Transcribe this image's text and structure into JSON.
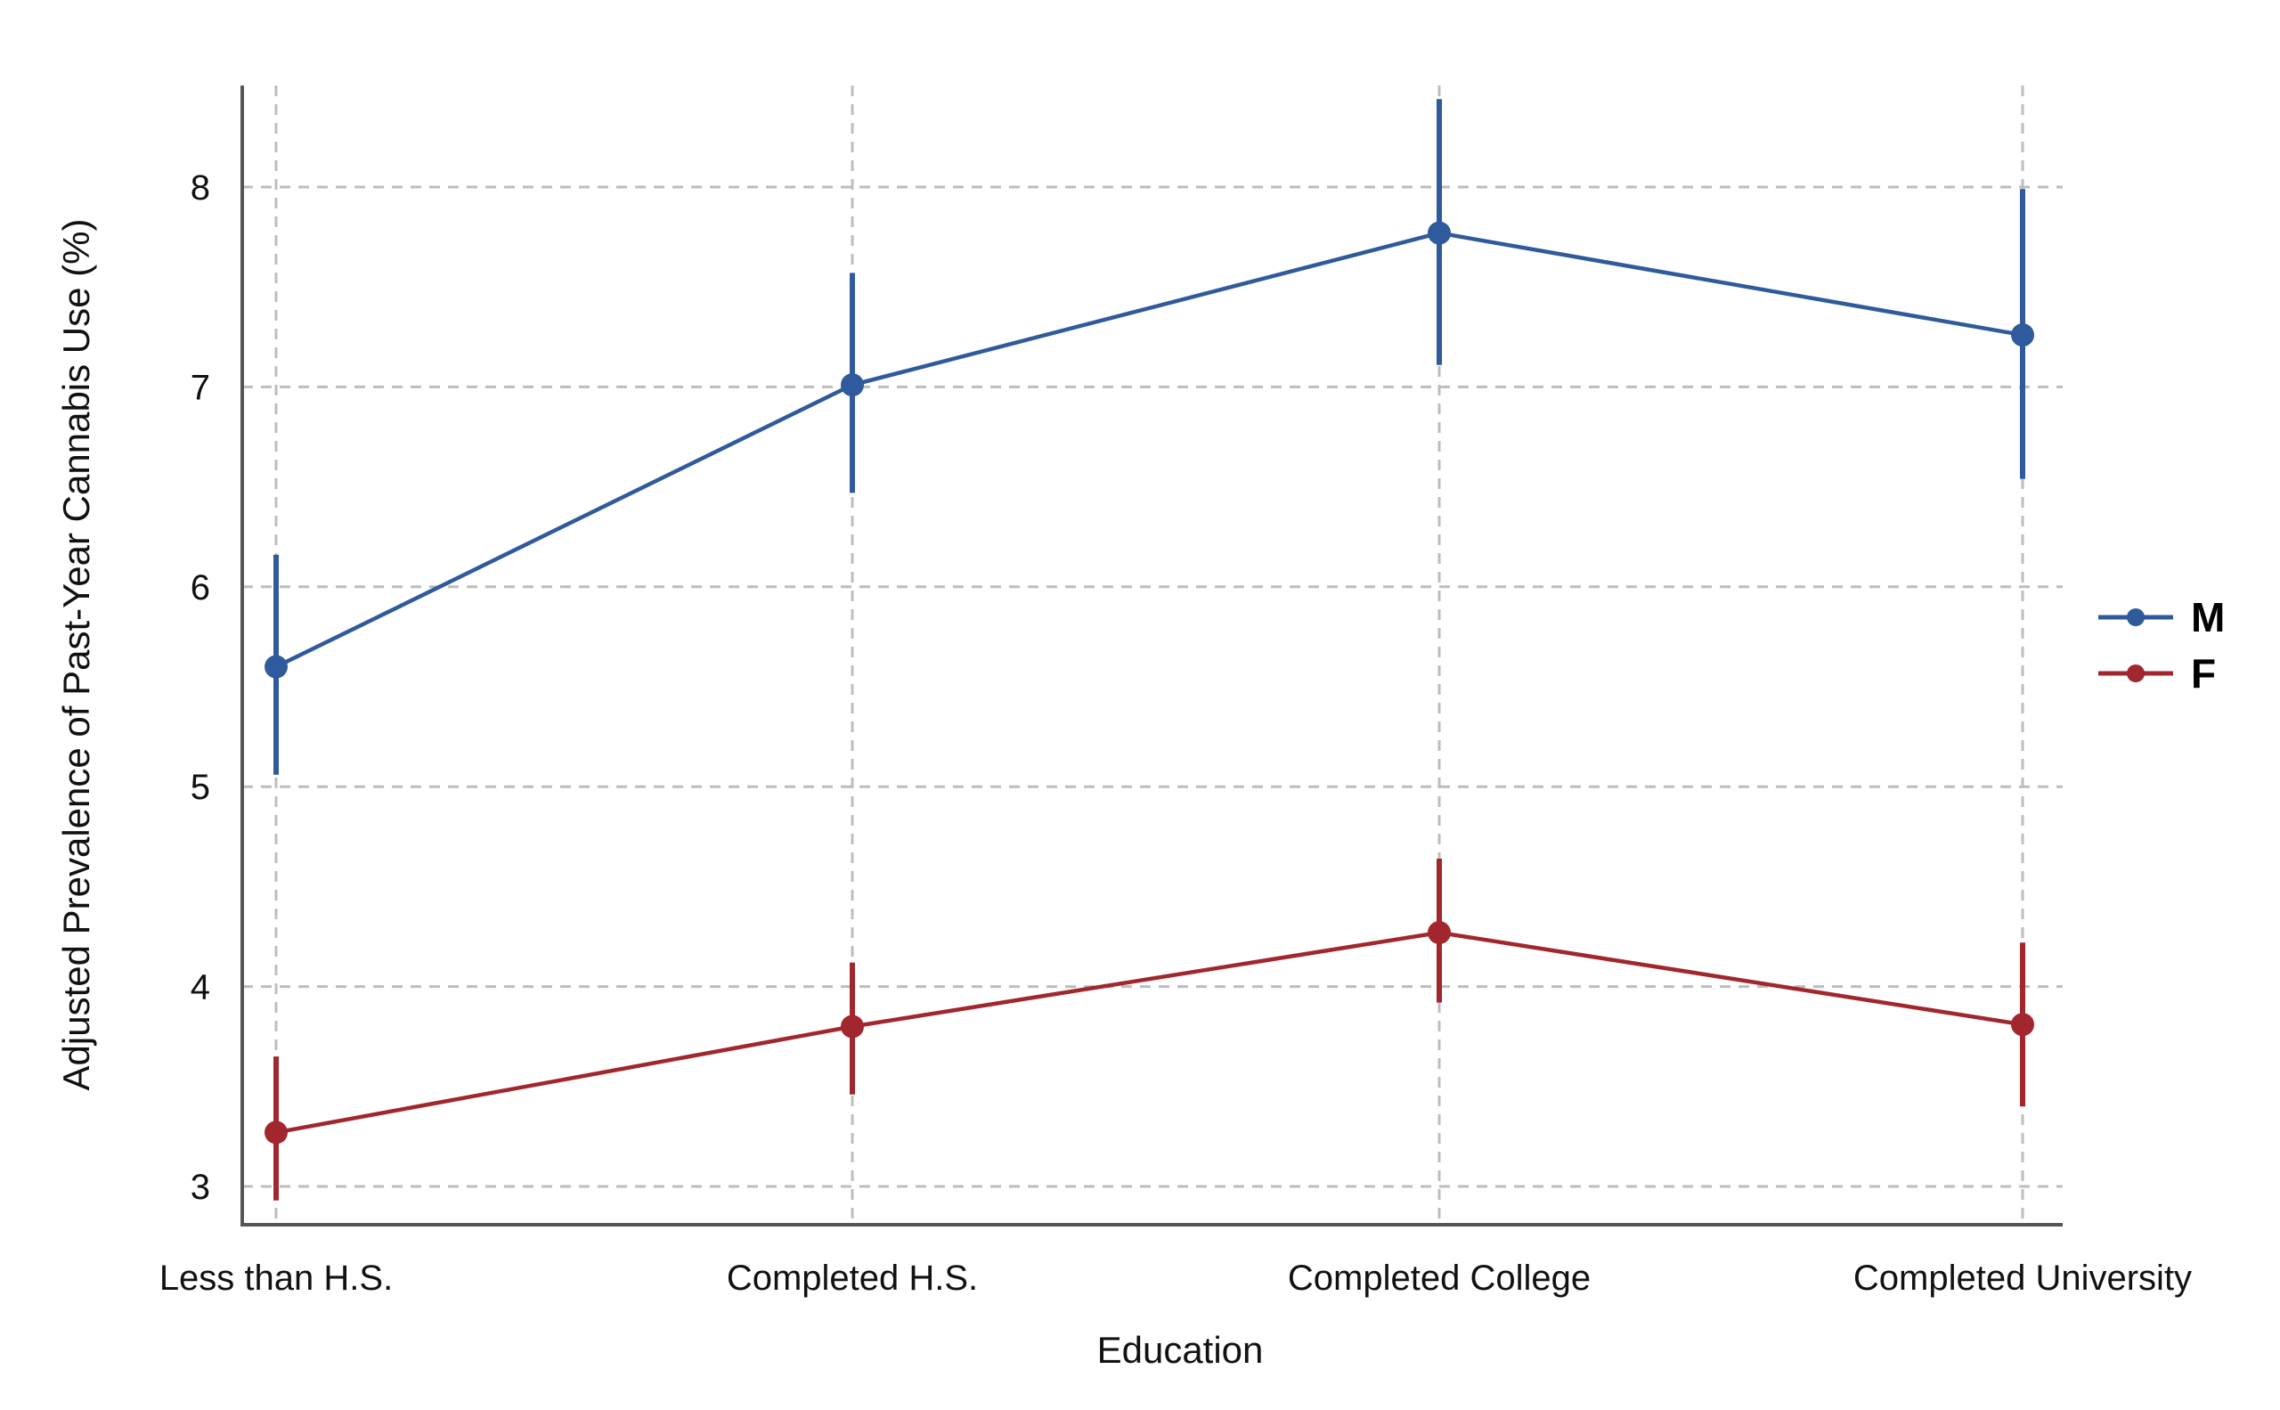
{
  "chart_data": {
    "type": "line",
    "title": "",
    "xlabel": "Education",
    "ylabel": "Adjusted Prevalence of Past-Year Cannabis Use (%)",
    "categories": [
      "Less than H.S.",
      "Completed H.S.",
      "Completed College",
      "Completed University"
    ],
    "yticks": [
      3,
      4,
      5,
      6,
      7,
      8
    ],
    "ylim": [
      2.8,
      8.5
    ],
    "grid": true,
    "legend_position": "right",
    "series": [
      {
        "name": "M",
        "color": "#2f5a9b",
        "values": [
          5.6,
          7.01,
          7.77,
          7.26
        ],
        "lower": [
          5.06,
          6.47,
          7.11,
          6.54
        ],
        "upper": [
          6.16,
          7.57,
          8.44,
          7.99
        ]
      },
      {
        "name": "F",
        "color": "#a2262d",
        "values": [
          3.27,
          3.8,
          4.27,
          3.81
        ],
        "lower": [
          2.93,
          3.46,
          3.92,
          3.4
        ],
        "upper": [
          3.65,
          4.12,
          4.64,
          4.22
        ]
      }
    ]
  }
}
